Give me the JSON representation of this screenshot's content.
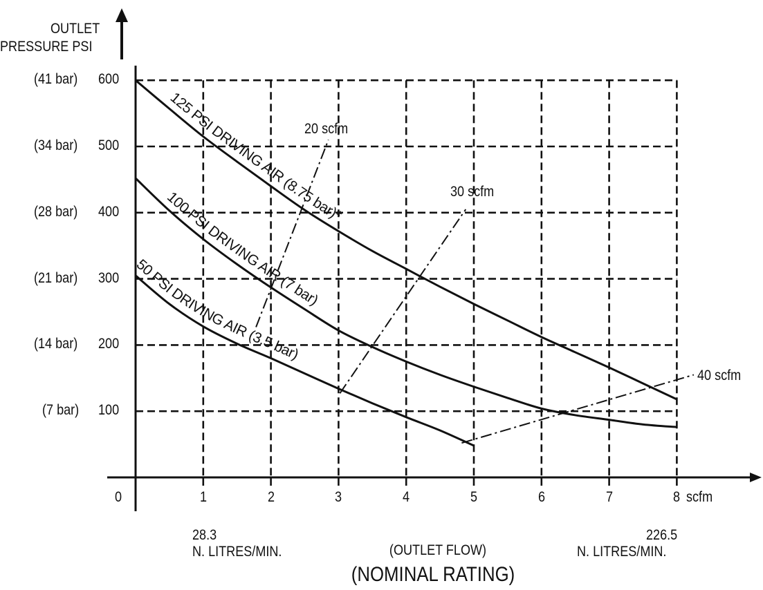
{
  "chart_data": {
    "type": "line",
    "ylabel_lines": [
      "OUTLET",
      "PRESSURE PSI"
    ],
    "y_ticks": [
      {
        "value": 100,
        "label": "100",
        "alt": "(7 bar)"
      },
      {
        "value": 200,
        "label": "200",
        "alt": "(14 bar)"
      },
      {
        "value": 300,
        "label": "300",
        "alt": "(21 bar)"
      },
      {
        "value": 400,
        "label": "400",
        "alt": "(28 bar)"
      },
      {
        "value": 500,
        "label": "500",
        "alt": "(34 bar)"
      },
      {
        "value": 600,
        "label": "600",
        "alt": "(41 bar)"
      }
    ],
    "x_ticks": [
      {
        "value": 1,
        "label": "1"
      },
      {
        "value": 2,
        "label": "2"
      },
      {
        "value": 3,
        "label": "3"
      },
      {
        "value": 4,
        "label": "4"
      },
      {
        "value": 5,
        "label": "5"
      },
      {
        "value": 6,
        "label": "6"
      },
      {
        "value": 7,
        "label": "7"
      },
      {
        "value": 8,
        "label": "8"
      }
    ],
    "origin_label": "0",
    "x_unit": "scfm",
    "xlim": [
      0,
      8
    ],
    "ylim": [
      0,
      600
    ],
    "grid": true,
    "series": [
      {
        "name": "125 PSI DRIVING AIR (8.75 bar)*",
        "x": [
          0,
          0.5,
          1,
          1.5,
          2,
          2.5,
          3,
          3.5,
          4,
          4.5,
          5,
          5.5,
          6,
          6.5,
          7,
          7.5,
          8
        ],
        "y": [
          600,
          557,
          515,
          477,
          440,
          404,
          372,
          342,
          315,
          288,
          262,
          237,
          212,
          189,
          166,
          142,
          118
        ]
      },
      {
        "name": "100 PSI DRIVING AIR (7 bar)",
        "x": [
          0,
          0.5,
          1,
          1.5,
          2,
          2.5,
          3,
          3.5,
          4,
          4.5,
          5,
          5.5,
          6,
          6.5,
          7,
          7.5,
          8
        ],
        "y": [
          452,
          403,
          360,
          322,
          287,
          254,
          222,
          197,
          175,
          155,
          137,
          120,
          104,
          94,
          87,
          80,
          76
        ]
      },
      {
        "name": "50 PSI DRIVING AIR (3.5 bar)",
        "x": [
          0,
          0.5,
          1,
          1.5,
          2,
          2.5,
          3,
          3.5,
          4,
          4.5,
          5
        ],
        "y": [
          305,
          262,
          228,
          202,
          180,
          157,
          134,
          112,
          91,
          71,
          48
        ]
      }
    ],
    "scfm_lines": [
      {
        "label": "20 scfm",
        "x": [
          1.78,
          2.85
        ],
        "y": [
          227,
          510
        ]
      },
      {
        "label": "30 scfm",
        "x": [
          3.02,
          4.88
        ],
        "y": [
          127,
          405
        ]
      },
      {
        "label": "40 scfm",
        "x": [
          4.82,
          8.25
        ],
        "y": [
          52,
          155
        ]
      }
    ],
    "annotations": {
      "flow_litres_low": {
        "value": "28.3",
        "unit": "N. LITRES/MIN."
      },
      "flow_litres_high": {
        "value": "226.5",
        "unit": "N. LITRES/MIN."
      },
      "center": "(OUTLET FLOW)",
      "title": "(NOMINAL RATING)"
    }
  }
}
